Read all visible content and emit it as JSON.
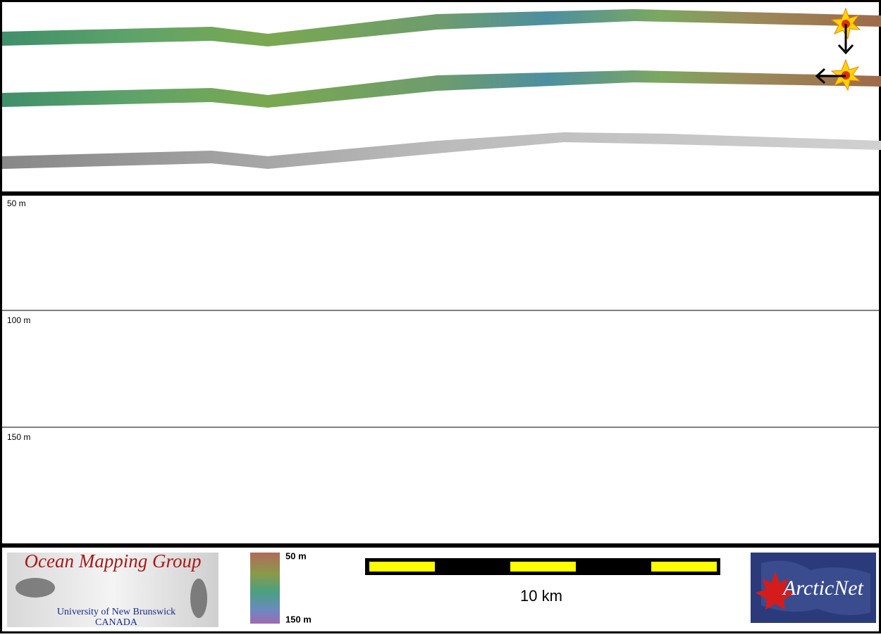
{
  "profile": {
    "depth_labels": [
      "50 m",
      "100 m",
      "150 m"
    ]
  },
  "footer": {
    "logo_left": {
      "title": "Ocean Mapping Group",
      "subtitle": "University of New Brunswick",
      "country": "CANADA"
    },
    "color_scale": {
      "top": "50 m",
      "bottom": "150 m"
    },
    "scale_bar": "10 km",
    "logo_right": "ArcticNet"
  }
}
